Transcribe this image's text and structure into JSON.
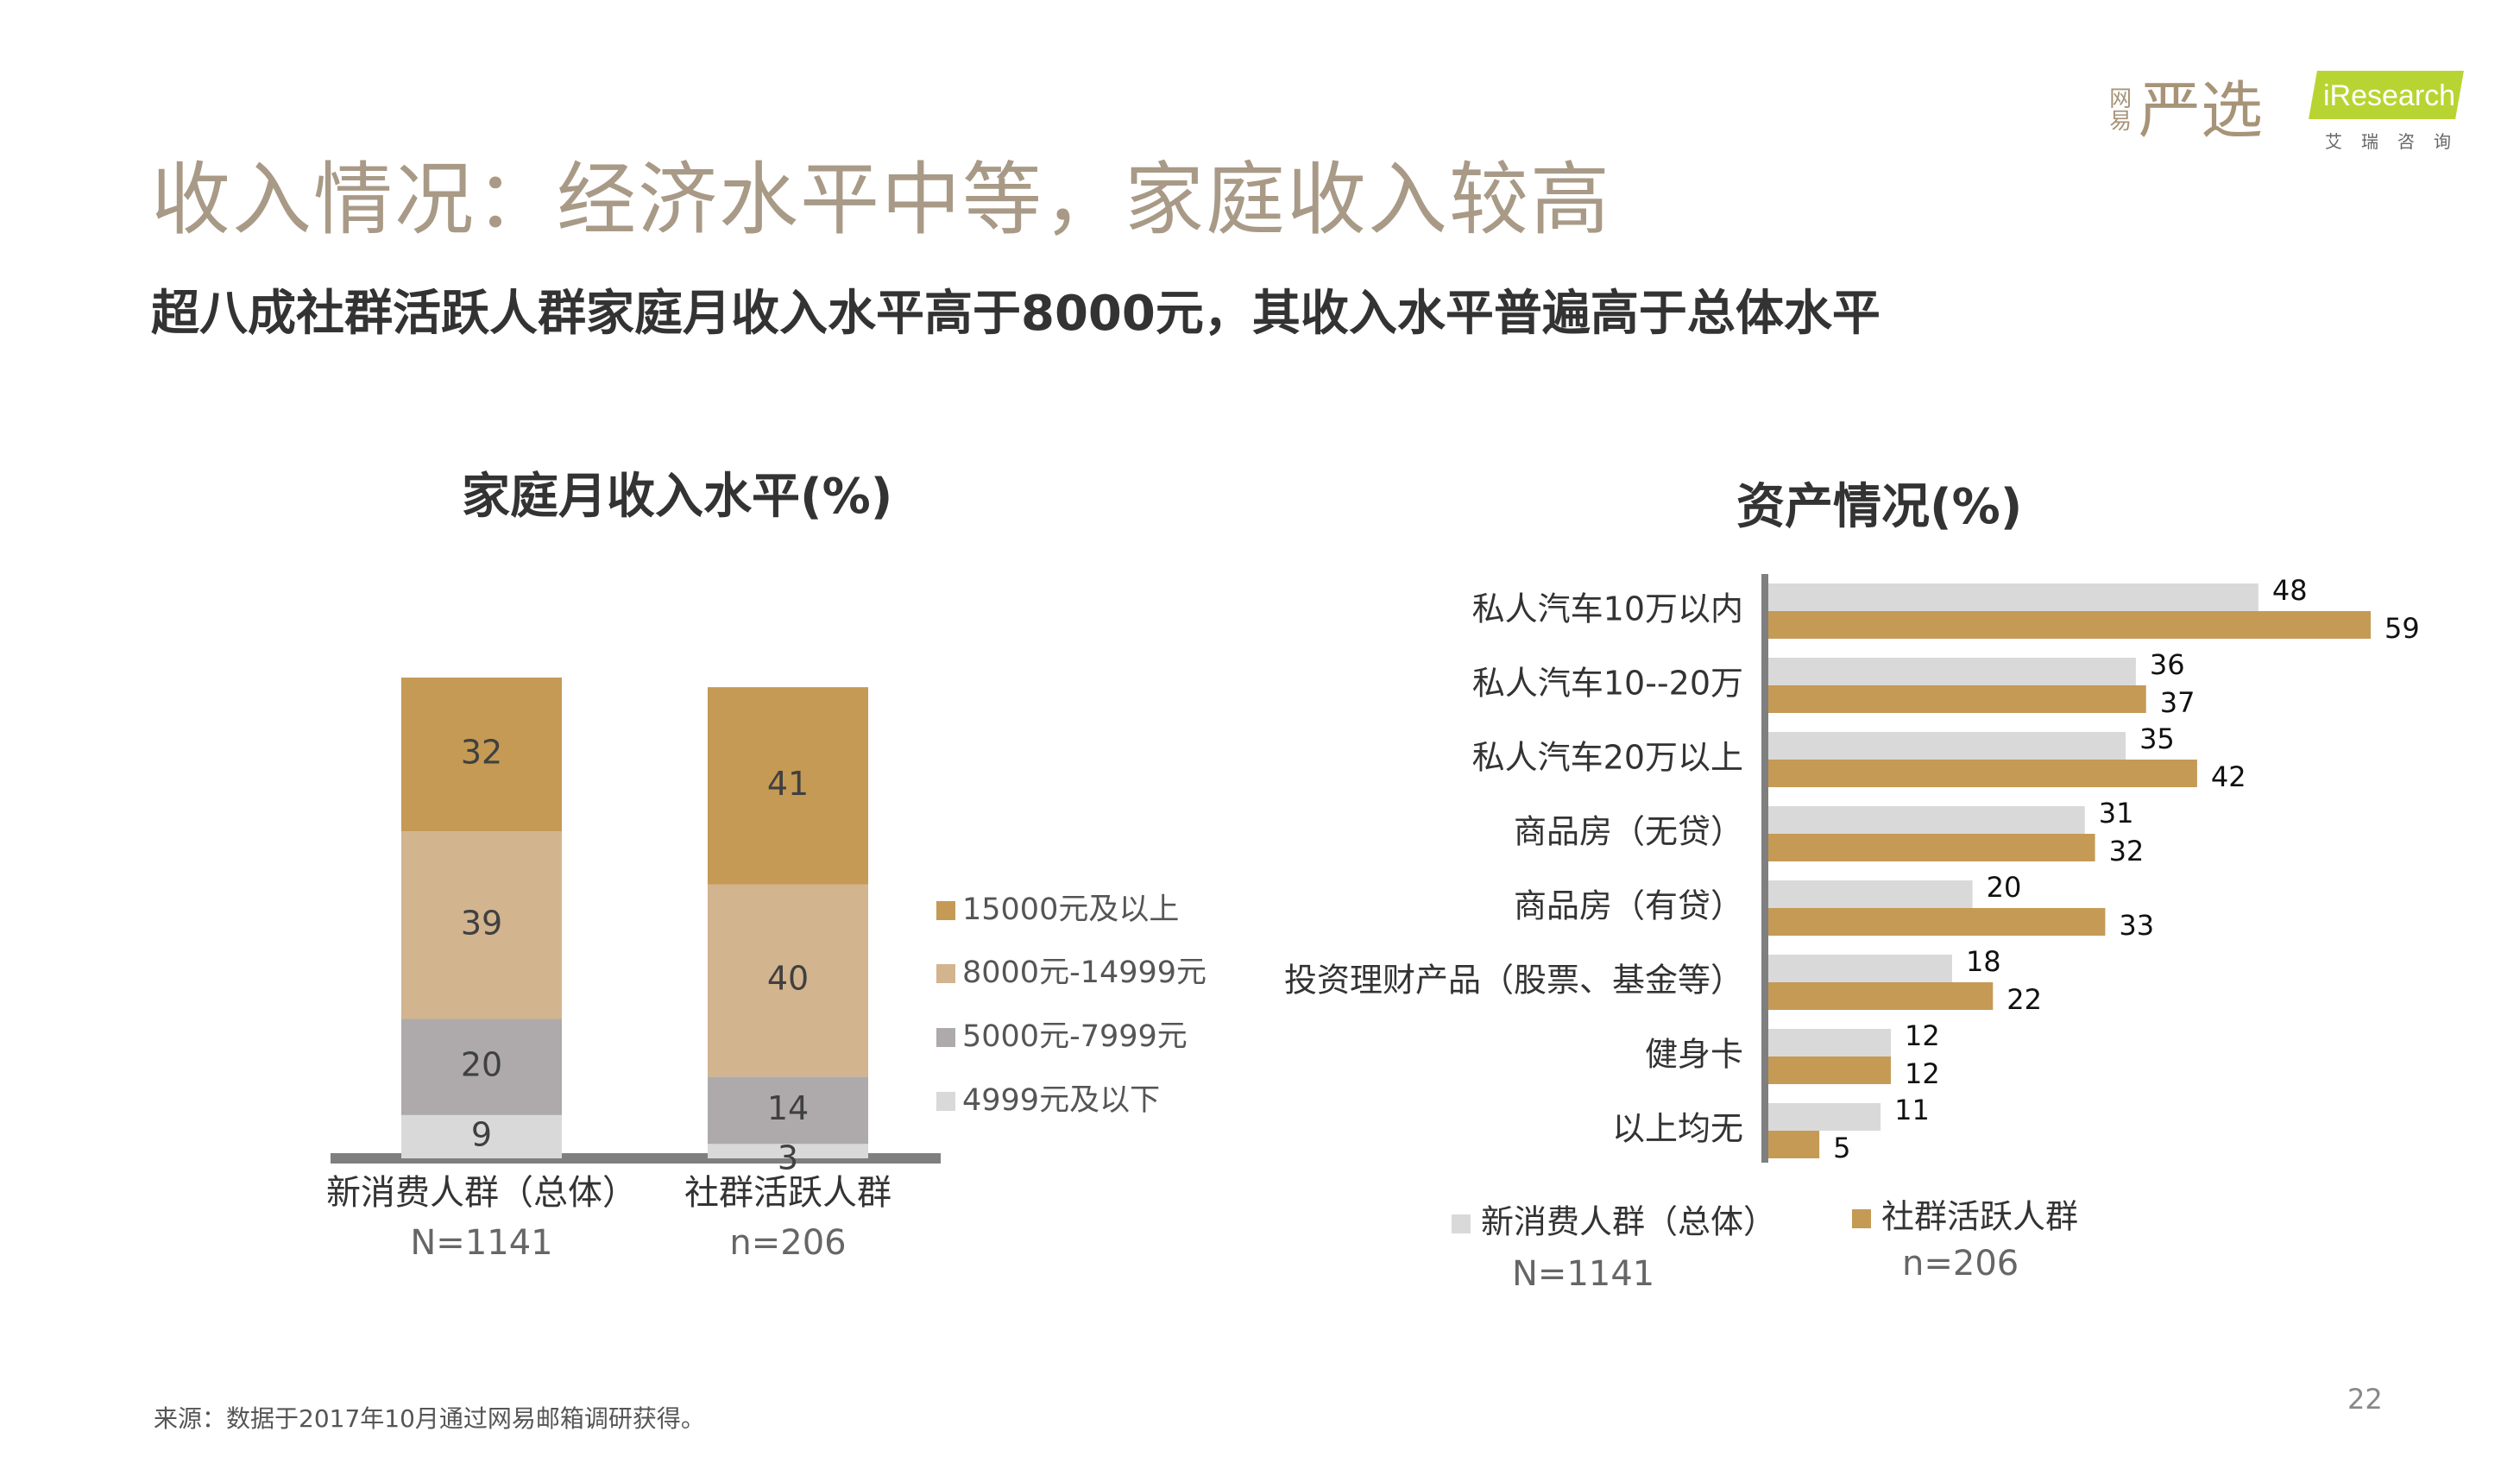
{
  "header": {
    "title": "收入情况：经济水平中等，家庭收入较高",
    "subtitle": "超八成社群活跃人群家庭月收入水平高于8000元，其收入水平普遍高于总体水平"
  },
  "logos": {
    "yanxuan": {
      "small": "网易",
      "big": "严选"
    },
    "iresearch": {
      "name": "iResearch",
      "sub": "艾瑞咨询"
    }
  },
  "footer": {
    "source": "来源：数据于2017年10月通过网易邮箱调研获得。",
    "page_number": "22"
  },
  "colors": {
    "gold": "#c49a55",
    "tan": "#d2b48f",
    "gray": "#aeaaab",
    "lightgray": "#dad9da",
    "axis": "#7f7f7f"
  },
  "chart_data": [
    {
      "type": "bar",
      "stacked": true,
      "title": "家庭月收入水平(%)",
      "categories": [
        "新消费人群（总体）",
        "社群活跃人群"
      ],
      "category_notes": [
        "N=1141",
        "n=206"
      ],
      "series": [
        {
          "name": "4999元及以下",
          "values": [
            9,
            3
          ],
          "color": "#dad9da"
        },
        {
          "name": "5000元-7999元",
          "values": [
            20,
            14
          ],
          "color": "#aeaaab"
        },
        {
          "name": "8000元-14999元",
          "values": [
            39,
            40
          ],
          "color": "#d2b48f"
        },
        {
          "name": "15000元及以上",
          "values": [
            32,
            41
          ],
          "color": "#c49a55"
        }
      ],
      "legend_order": [
        "15000元及以上",
        "8000元-14999元",
        "5000元-7999元",
        "4999元及以下"
      ],
      "legend": "right",
      "ylim": [
        0,
        100
      ]
    },
    {
      "type": "bar",
      "orientation": "horizontal",
      "title": "资产情况(%)",
      "categories": [
        "私人汽车10万以内",
        "私人汽车10--20万",
        "私人汽车20万以上",
        "商品房（无贷）",
        "商品房（有贷）",
        "投资理财产品（股票、基金等）",
        "健身卡",
        "以上均无"
      ],
      "series": [
        {
          "name": "新消费人群（总体）",
          "note": "N=1141",
          "values": [
            48,
            36,
            35,
            31,
            20,
            18,
            12,
            11
          ],
          "color": "#dad9da"
        },
        {
          "name": "社群活跃人群",
          "note": "n=206",
          "values": [
            59,
            37,
            42,
            32,
            33,
            22,
            12,
            5
          ],
          "color": "#c49a55"
        }
      ],
      "legend": "bottom",
      "xlim": [
        0,
        59
      ]
    }
  ]
}
